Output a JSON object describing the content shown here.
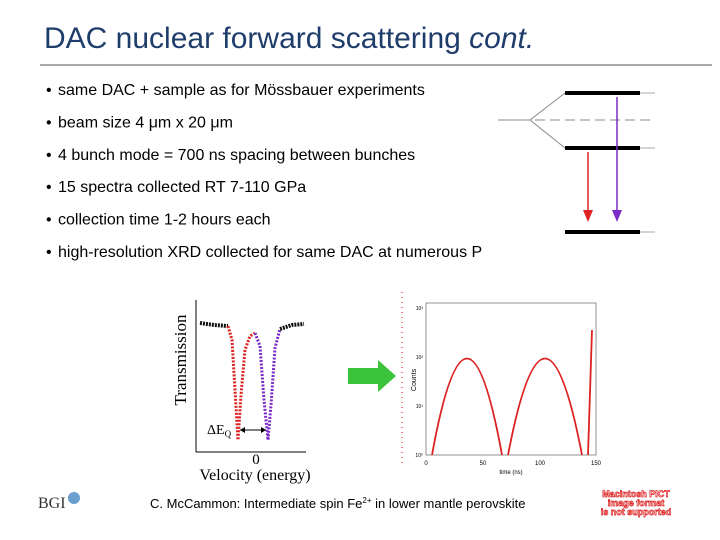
{
  "header": {
    "title": "DAC nuclear forward scattering ",
    "title_emphasis": "cont."
  },
  "bullets": [
    "same DAC + sample as for Mössbauer experiments",
    "beam size 4 μm x 20 μm",
    "4 bunch mode = 700 ns spacing between bunches",
    "15 spectra collected RT 7-110 GPa",
    "collection time 1-2 hours each",
    "high-resolution XRD collected for same DAC at numerous P"
  ],
  "bullet_symbol": "•",
  "mossbauer_plot": {
    "y_label": "Transmission",
    "x_label": "Velocity (energy)",
    "zero": "0",
    "splitting": "ΔE",
    "splitting_sub": "Q"
  },
  "nfs_plot": {
    "y_label": "Counts",
    "x_label": "time (ns)",
    "x_ticks": [
      "0",
      "50",
      "100",
      "150"
    ],
    "y_ticks": [
      "10³",
      "10²",
      "10¹",
      "10⁰"
    ]
  },
  "footer": {
    "citation": "C. McCammon: Intermediate spin Fe",
    "citation_sup": "2+",
    "citation_end": " in lower mantle perovskite",
    "logo": "BGI",
    "pict_notice": [
      "Macintosh PICT",
      "image format",
      "is not supported"
    ]
  }
}
